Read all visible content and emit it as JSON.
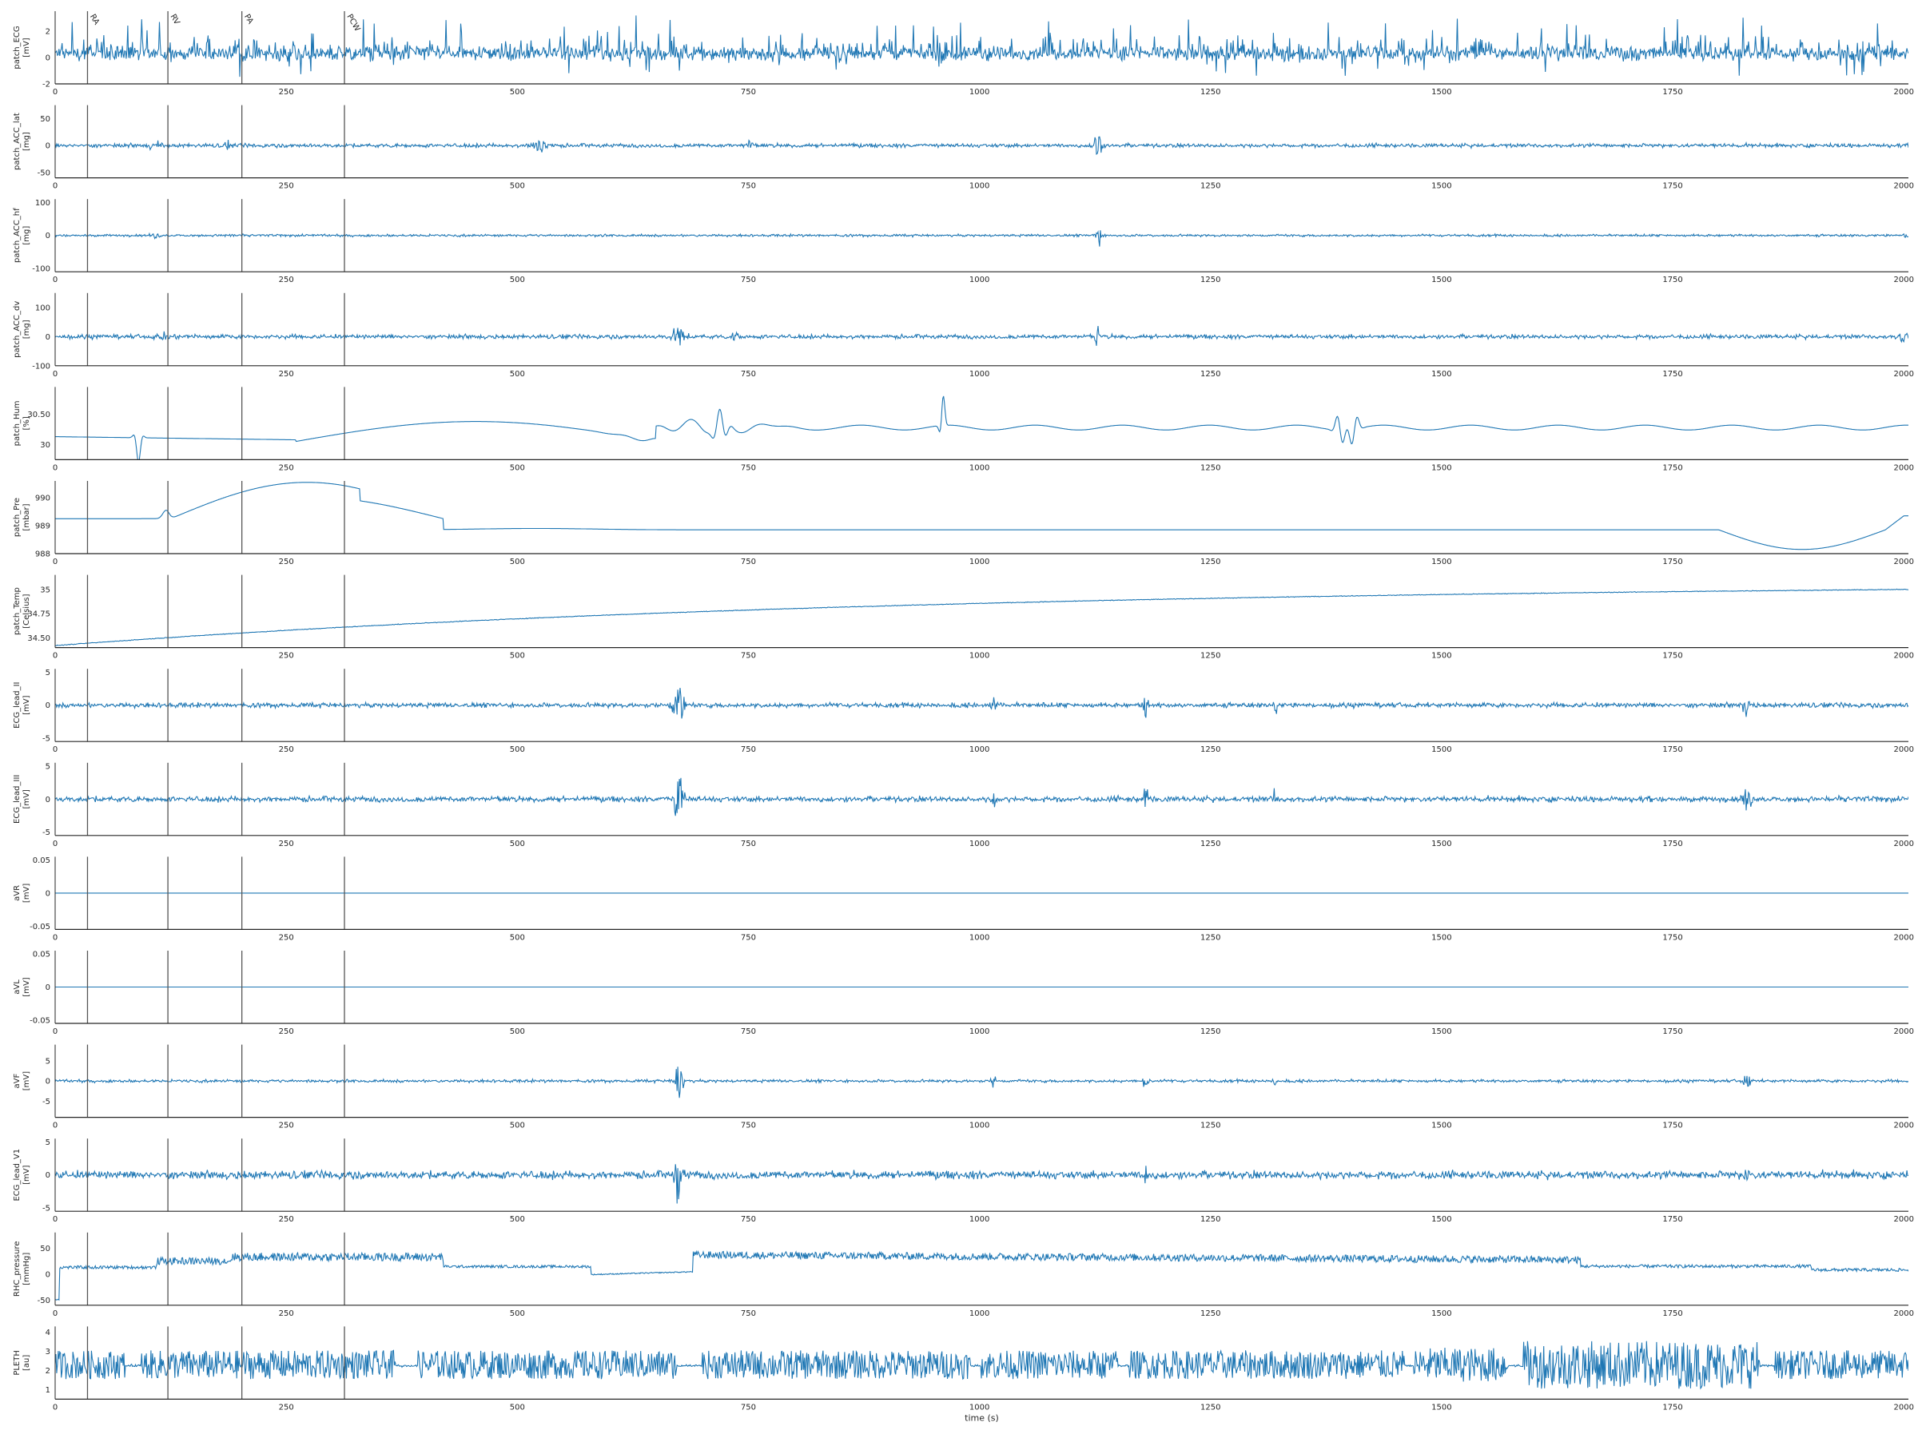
{
  "figure": {
    "xlabel": "time (s)",
    "line_color": "#1f77b4",
    "marker_color": "#555555"
  },
  "chart_data": {
    "type": "line",
    "xlim": [
      0,
      2005
    ],
    "x_ticks": [
      0,
      250,
      500,
      750,
      1000,
      1250,
      1500,
      1750,
      2000
    ],
    "markers": [
      {
        "x": 35,
        "label": "RA"
      },
      {
        "x": 122,
        "label": "RV"
      },
      {
        "x": 202,
        "label": "PA"
      },
      {
        "x": 313,
        "label": "PCW"
      }
    ],
    "panels": [
      {
        "name": "patch_ECG",
        "unit": "[mV]",
        "ylim": [
          -2,
          3.5
        ],
        "yticks": [
          -2,
          0,
          2
        ],
        "signal": "ecg_patch"
      },
      {
        "name": "patch_ACC_lat",
        "unit": "[mg]",
        "ylim": [
          -60,
          75
        ],
        "yticks": [
          -50,
          0,
          50
        ],
        "signal": "acc_lat"
      },
      {
        "name": "patch_ACC_hf",
        "unit": "[mg]",
        "ylim": [
          -110,
          110
        ],
        "yticks": [
          -100,
          0,
          100
        ],
        "signal": "acc_hf"
      },
      {
        "name": "patch_ACC_dv",
        "unit": "[mg]",
        "ylim": [
          -100,
          150
        ],
        "yticks": [
          -100,
          0,
          100
        ],
        "signal": "acc_dv"
      },
      {
        "name": "patch_Hum",
        "unit": "[%]",
        "ylim": [
          29.75,
          30.95
        ],
        "yticks": [
          30.0,
          30.5
        ],
        "signal": "hum"
      },
      {
        "name": "patch_Pre",
        "unit": "[mbar]",
        "ylim": [
          988,
          990.6
        ],
        "yticks": [
          988,
          989,
          990
        ],
        "signal": "pre"
      },
      {
        "name": "patch_Temp",
        "unit": "[Celsius]",
        "ylim": [
          34.4,
          35.15
        ],
        "yticks": [
          34.5,
          34.75,
          35.0
        ],
        "signal": "temp"
      },
      {
        "name": "ECG_lead_II",
        "unit": "[mV]",
        "ylim": [
          -5.5,
          5.5
        ],
        "yticks": [
          -5,
          0,
          5
        ],
        "signal": "ecg_lead_ii"
      },
      {
        "name": "ECG_lead_III",
        "unit": "[mV]",
        "ylim": [
          -5.5,
          5.5
        ],
        "yticks": [
          -5,
          0,
          5
        ],
        "signal": "ecg_lead_iii"
      },
      {
        "name": "aVR",
        "unit": "[mV]",
        "ylim": [
          -0.055,
          0.055
        ],
        "yticks": [
          -0.05,
          0.0,
          0.05
        ],
        "signal": "flat"
      },
      {
        "name": "aVL",
        "unit": "[mV]",
        "ylim": [
          -0.055,
          0.055
        ],
        "yticks": [
          -0.05,
          0.0,
          0.05
        ],
        "signal": "flat"
      },
      {
        "name": "aVF",
        "unit": "[mV]",
        "ylim": [
          -9,
          9
        ],
        "yticks": [
          -5,
          0,
          5
        ],
        "signal": "avf"
      },
      {
        "name": "ECG_lead_V1",
        "unit": "[mV]",
        "ylim": [
          -5.5,
          5.5
        ],
        "yticks": [
          -5,
          0,
          5
        ],
        "signal": "ecg_lead_v1"
      },
      {
        "name": "RHC_pressure",
        "unit": "[mmHg]",
        "ylim": [
          -60,
          80
        ],
        "yticks": [
          -50,
          0,
          50
        ],
        "signal": "rhc"
      },
      {
        "name": "PLETH",
        "unit": "[au]",
        "ylim": [
          0.5,
          4.3
        ],
        "yticks": [
          1,
          2,
          3,
          4
        ],
        "signal": "pleth"
      }
    ]
  }
}
